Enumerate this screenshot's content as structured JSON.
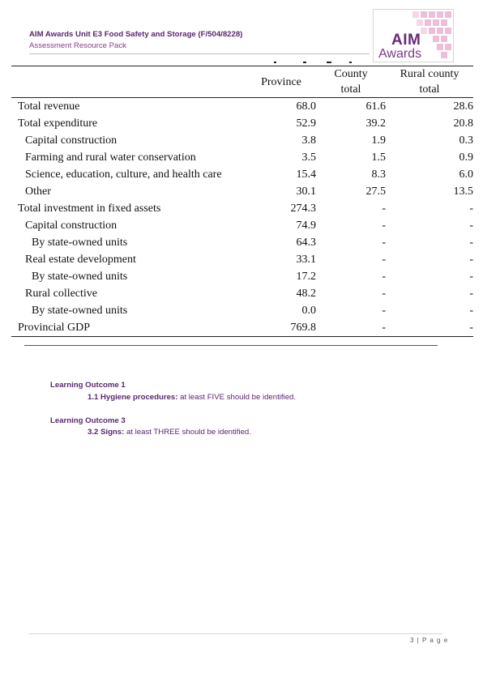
{
  "header": {
    "title": "AIM Awards Unit E3 Food Safety and Storage (F/504/8228)",
    "subtitle": "Assessment Resource Pack",
    "logo_line1": "AIM",
    "logo_line2": "Awards"
  },
  "table": {
    "columns": [
      {
        "label": ""
      },
      {
        "label": "Province"
      },
      {
        "label_line1": "County",
        "label_line2": "total"
      },
      {
        "label_line1": "Rural county",
        "label_line2": "total"
      }
    ],
    "rows": [
      {
        "label": "Total revenue",
        "indent": 0,
        "province": "68.0",
        "county": "61.6",
        "rural": "28.6"
      },
      {
        "label": "Total expenditure",
        "indent": 0,
        "province": "52.9",
        "county": "39.2",
        "rural": "20.8"
      },
      {
        "label": "Capital construction",
        "indent": 1,
        "province": "3.8",
        "county": "1.9",
        "rural": "0.3"
      },
      {
        "label": "Farming and rural water conservation",
        "indent": 1,
        "province": "3.5",
        "county": "1.5",
        "rural": "0.9"
      },
      {
        "label": "Science, education, culture, and health care",
        "indent": 1,
        "province": "15.4",
        "county": "8.3",
        "rural": "6.0"
      },
      {
        "label": "Other",
        "indent": 1,
        "province": "30.1",
        "county": "27.5",
        "rural": "13.5"
      },
      {
        "label": "Total investment in fixed assets",
        "indent": 0,
        "province": "274.3",
        "county": "-",
        "rural": "-"
      },
      {
        "label": "Capital construction",
        "indent": 1,
        "province": "74.9",
        "county": "-",
        "rural": "-"
      },
      {
        "label": "By state-owned units",
        "indent": 2,
        "province": "64.3",
        "county": "-",
        "rural": "-"
      },
      {
        "label": "Real estate development",
        "indent": 1,
        "province": "33.1",
        "county": "-",
        "rural": "-"
      },
      {
        "label": "By state-owned units",
        "indent": 2,
        "province": "17.2",
        "county": "-",
        "rural": "-"
      },
      {
        "label": "Rural collective",
        "indent": 1,
        "province": "48.2",
        "county": "-",
        "rural": "-"
      },
      {
        "label": "By state-owned units",
        "indent": 2,
        "province": "0.0",
        "county": "-",
        "rural": "-"
      },
      {
        "label": "Provincial GDP",
        "indent": 0,
        "province": "769.8",
        "county": "-",
        "rural": "-"
      }
    ]
  },
  "learning_outcomes": [
    {
      "heading": "Learning Outcome 1",
      "item_bold": "1.1 Hygiene procedures:",
      "item_text": " at least FIVE should be identified."
    },
    {
      "heading": "Learning Outcome 3",
      "item_bold": "3.2 Signs:",
      "item_text": " at least THREE should be identified."
    }
  ],
  "footer": {
    "page_label": "3 | P a g e"
  },
  "colors": {
    "brand_purple": "#5a2570",
    "logo_pink": "#e9b7d6"
  }
}
